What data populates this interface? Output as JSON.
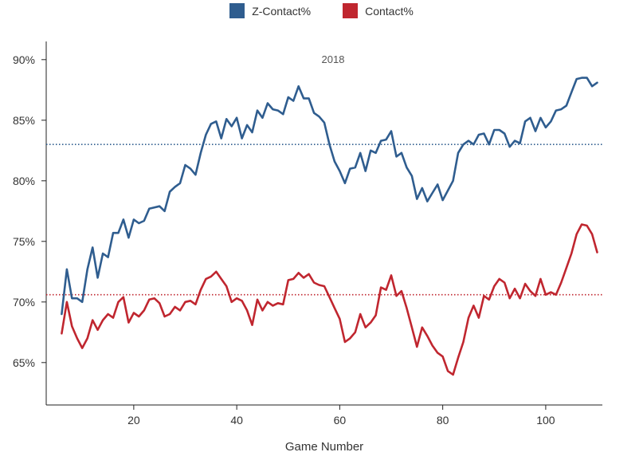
{
  "chart_data": {
    "type": "line",
    "subtitle": "2018",
    "xlabel": "Game Number",
    "ylabel": "",
    "xlim": [
      3,
      111
    ],
    "ylim": [
      61.5,
      91.5
    ],
    "x_ticks": [
      20,
      40,
      60,
      80,
      100
    ],
    "y_ticks": [
      65,
      70,
      75,
      80,
      85,
      90
    ],
    "y_tick_labels": [
      "65%",
      "70%",
      "75%",
      "80%",
      "85%",
      "90%"
    ],
    "grid": false,
    "legend_position": "top-center",
    "series": [
      {
        "name": "Z-Contact%",
        "color": "#2f5d8f",
        "reference_line": 83.0,
        "x": [
          6,
          7,
          8,
          9,
          10,
          11,
          12,
          13,
          14,
          15,
          16,
          17,
          18,
          19,
          20,
          21,
          22,
          23,
          24,
          25,
          26,
          27,
          28,
          29,
          30,
          31,
          32,
          33,
          34,
          35,
          36,
          37,
          38,
          39,
          40,
          41,
          42,
          43,
          44,
          45,
          46,
          47,
          48,
          49,
          50,
          51,
          52,
          53,
          54,
          55,
          56,
          57,
          58,
          59,
          60,
          61,
          62,
          63,
          64,
          65,
          66,
          67,
          68,
          69,
          70,
          71,
          72,
          73,
          74,
          75,
          76,
          77,
          78,
          79,
          80,
          81,
          82,
          83,
          84,
          85,
          86,
          87,
          88,
          89,
          90,
          91,
          92,
          93,
          94,
          95,
          96,
          97,
          98,
          99,
          100,
          101,
          102,
          103,
          104,
          105,
          106,
          107,
          108,
          109,
          110
        ],
        "y": [
          69.0,
          72.7,
          70.3,
          70.3,
          70.0,
          72.7,
          74.5,
          72.0,
          74.0,
          73.7,
          75.7,
          75.7,
          76.8,
          75.3,
          76.8,
          76.5,
          76.7,
          77.7,
          77.8,
          77.9,
          77.5,
          79.1,
          79.5,
          79.8,
          81.3,
          81.0,
          80.5,
          82.3,
          83.8,
          84.7,
          84.9,
          83.5,
          85.1,
          84.5,
          85.2,
          83.5,
          84.6,
          84.0,
          85.8,
          85.2,
          86.4,
          85.9,
          85.8,
          85.5,
          86.9,
          86.6,
          87.8,
          86.8,
          86.8,
          85.6,
          85.3,
          84.8,
          83.0,
          81.6,
          80.8,
          79.8,
          81.0,
          81.1,
          82.3,
          80.8,
          82.5,
          82.3,
          83.3,
          83.4,
          84.1,
          82.0,
          82.3,
          81.1,
          80.4,
          78.5,
          79.4,
          78.3,
          79.0,
          79.7,
          78.4,
          79.2,
          80.0,
          82.3,
          83.0,
          83.3,
          83.0,
          83.8,
          83.9,
          83.0,
          84.2,
          84.2,
          83.9,
          82.8,
          83.3,
          83.1,
          84.9,
          85.2,
          84.1,
          85.2,
          84.4,
          84.9,
          85.8,
          85.9,
          86.2,
          87.3,
          88.4,
          88.5,
          88.5,
          87.8,
          88.1
        ]
      },
      {
        "name": "Contact%",
        "color": "#c0262f",
        "reference_line": 70.6,
        "x": [
          6,
          7,
          8,
          9,
          10,
          11,
          12,
          13,
          14,
          15,
          16,
          17,
          18,
          19,
          20,
          21,
          22,
          23,
          24,
          25,
          26,
          27,
          28,
          29,
          30,
          31,
          32,
          33,
          34,
          35,
          36,
          37,
          38,
          39,
          40,
          41,
          42,
          43,
          44,
          45,
          46,
          47,
          48,
          49,
          50,
          51,
          52,
          53,
          54,
          55,
          56,
          57,
          58,
          59,
          60,
          61,
          62,
          63,
          64,
          65,
          66,
          67,
          68,
          69,
          70,
          71,
          72,
          73,
          74,
          75,
          76,
          77,
          78,
          79,
          80,
          81,
          82,
          83,
          84,
          85,
          86,
          87,
          88,
          89,
          90,
          91,
          92,
          93,
          94,
          95,
          96,
          97,
          98,
          99,
          100,
          101,
          102,
          103,
          104,
          105,
          106,
          107,
          108,
          109,
          110
        ],
        "y": [
          67.4,
          70.0,
          68.0,
          67.0,
          66.2,
          67.0,
          68.5,
          67.7,
          68.5,
          69.0,
          68.7,
          70.0,
          70.4,
          68.3,
          69.1,
          68.8,
          69.3,
          70.2,
          70.3,
          69.9,
          68.8,
          69.0,
          69.6,
          69.3,
          70.0,
          70.1,
          69.8,
          71.0,
          71.9,
          72.1,
          72.5,
          71.9,
          71.3,
          70.0,
          70.3,
          70.1,
          69.3,
          68.1,
          70.2,
          69.3,
          70.0,
          69.7,
          69.9,
          69.8,
          71.8,
          71.9,
          72.4,
          72.0,
          72.3,
          71.6,
          71.4,
          71.3,
          70.4,
          69.5,
          68.6,
          66.7,
          67.0,
          67.5,
          69.0,
          67.9,
          68.3,
          68.9,
          71.2,
          71.0,
          72.2,
          70.5,
          70.9,
          69.5,
          67.9,
          66.3,
          67.9,
          67.2,
          66.4,
          65.8,
          65.5,
          64.3,
          64.0,
          65.4,
          66.7,
          68.7,
          69.7,
          68.7,
          70.5,
          70.2,
          71.3,
          71.9,
          71.6,
          70.3,
          71.1,
          70.3,
          71.5,
          70.9,
          70.5,
          71.9,
          70.6,
          70.8,
          70.6,
          71.6,
          72.8,
          74.0,
          75.6,
          76.4,
          76.3,
          75.6,
          74.1
        ]
      }
    ]
  }
}
